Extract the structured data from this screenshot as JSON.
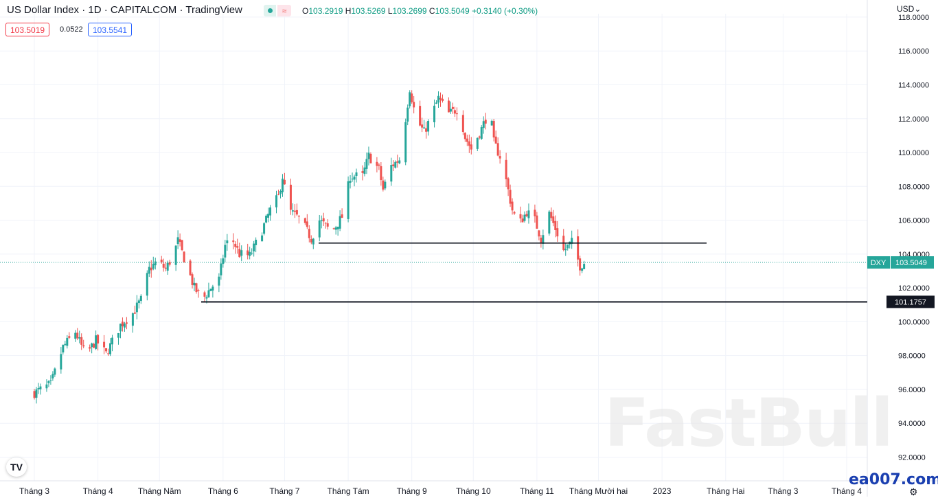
{
  "header": {
    "title": "US Dollar Index · 1D · CAPITALCOM · TradingView",
    "ohlc": {
      "o_label": "O",
      "o": "103.2919",
      "h_label": "H",
      "h": "103.5269",
      "l_label": "L",
      "l": "103.2699",
      "c_label": "C",
      "c": "103.5049",
      "change": "+0.3140 (+0.30%)"
    },
    "bid": "103.5019",
    "spread": "0.0522",
    "ask": "103.5541",
    "currency": "USD",
    "status_wave": "≈"
  },
  "branding": {
    "watermark": "FastBull",
    "site": "ea007.com",
    "logo": "TV"
  },
  "colors": {
    "up": "#26a69a",
    "down": "#ef5350",
    "accent": "#26a69a",
    "line": "#131722"
  },
  "chart_data": {
    "type": "candlestick",
    "title": "US Dollar Index · 1D · CAPITALCOM",
    "ylim": [
      90.6,
      118.2
    ],
    "yticks": [
      "118.0000",
      "116.0000",
      "114.0000",
      "112.0000",
      "110.0000",
      "108.0000",
      "106.0000",
      "104.0000",
      "102.0000",
      "100.0000",
      "98.0000",
      "96.0000",
      "94.0000",
      "92.0000"
    ],
    "x_labels": [
      "Tháng 3",
      "Tháng 4",
      "Tháng Năm",
      "Tháng 6",
      "Tháng 7",
      "Tháng Tám",
      "Tháng 9",
      "Tháng 10",
      "Tháng 11",
      "Tháng Mười hai",
      "2023",
      "Tháng Hai",
      "Tháng 3",
      "Tháng 4"
    ],
    "x_label_days": [
      0,
      31,
      61,
      92,
      122,
      153,
      184,
      214,
      245,
      275,
      306,
      337,
      365,
      396
    ],
    "start_date": "2022-02-15",
    "last_date": "2022-12-20",
    "symbol": "DXY",
    "last_price": "103.5049",
    "last_value": 103.5049,
    "series_path": [
      [
        0,
        95.8
      ],
      [
        8,
        96.3
      ],
      [
        14,
        98.5
      ],
      [
        20,
        99.4
      ],
      [
        25,
        98.0
      ],
      [
        30,
        98.9
      ],
      [
        35,
        98.1
      ],
      [
        42,
        99.8
      ],
      [
        48,
        100.5
      ],
      [
        52,
        101.3
      ],
      [
        56,
        103.1
      ],
      [
        60,
        103.6
      ],
      [
        64,
        103.1
      ],
      [
        68,
        104.0
      ],
      [
        70,
        104.8
      ],
      [
        74,
        103.4
      ],
      [
        78,
        102.0
      ],
      [
        82,
        101.3
      ],
      [
        86,
        102.0
      ],
      [
        90,
        102.5
      ],
      [
        93,
        104.5
      ],
      [
        96,
        105.0
      ],
      [
        100,
        104.0
      ],
      [
        105,
        103.9
      ],
      [
        110,
        105.1
      ],
      [
        115,
        106.6
      ],
      [
        119,
        107.4
      ],
      [
        121,
        108.6
      ],
      [
        124,
        106.6
      ],
      [
        130,
        106.0
      ],
      [
        135,
        104.9
      ],
      [
        139,
        106.0
      ],
      [
        145,
        105.3
      ],
      [
        150,
        106.2
      ],
      [
        154,
        108.6
      ],
      [
        160,
        108.6
      ],
      [
        163,
        109.8
      ],
      [
        168,
        109.0
      ],
      [
        170,
        107.8
      ],
      [
        174,
        109.2
      ],
      [
        178,
        109.6
      ],
      [
        181,
        112.0
      ],
      [
        183,
        113.8
      ],
      [
        186,
        112.0
      ],
      [
        190,
        111.2
      ],
      [
        193,
        112.0
      ],
      [
        197,
        113.2
      ],
      [
        202,
        112.3
      ],
      [
        207,
        112.6
      ],
      [
        210,
        110.9
      ],
      [
        213,
        110.2
      ],
      [
        218,
        111.4
      ],
      [
        222,
        112.6
      ],
      [
        224,
        110.6
      ],
      [
        228,
        109.5
      ],
      [
        233,
        106.6
      ],
      [
        236,
        105.7
      ],
      [
        240,
        106.5
      ],
      [
        244,
        106.0
      ],
      [
        247,
        104.9
      ],
      [
        251,
        106.4
      ],
      [
        255,
        105.2
      ],
      [
        258,
        104.2
      ],
      [
        262,
        104.7
      ],
      [
        266,
        103.3
      ],
      [
        268,
        103.5
      ]
    ],
    "hlines": [
      {
        "value": 104.65,
        "label": ""
      },
      {
        "value": 101.1757,
        "label": "101.1757"
      }
    ]
  }
}
